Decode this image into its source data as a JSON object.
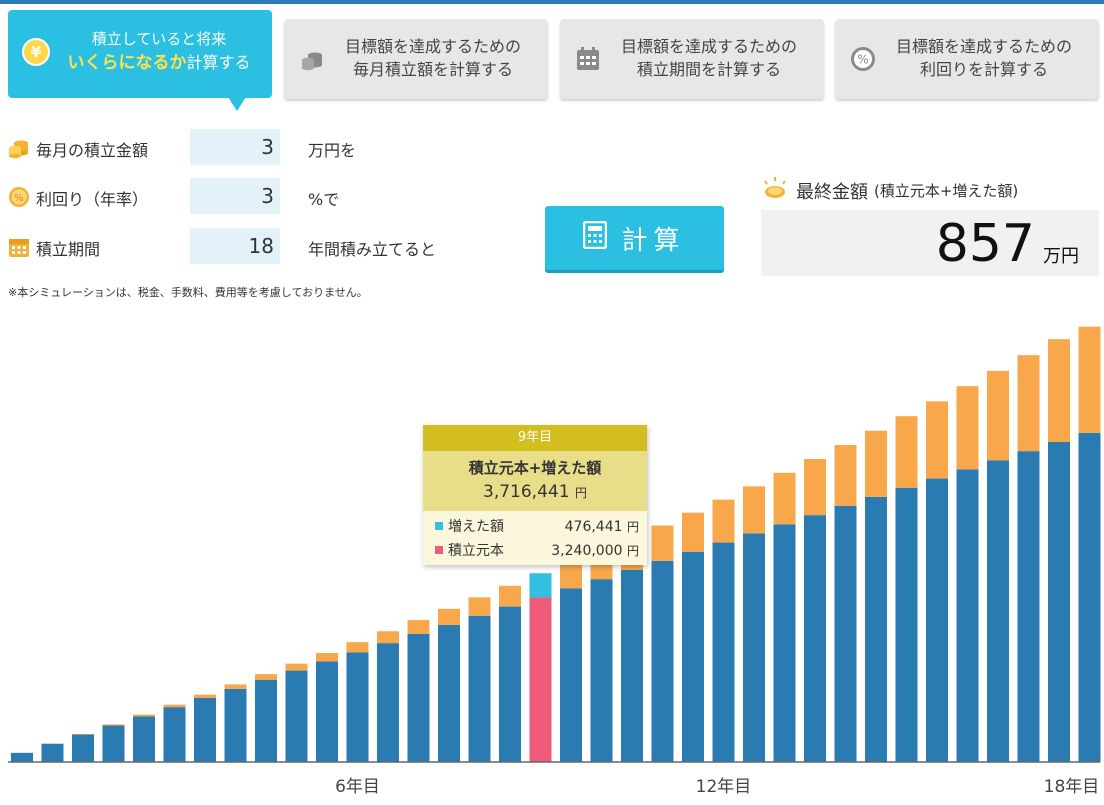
{
  "tabs": [
    {
      "line1": "積立していると将来",
      "highlight": "いくらになるか",
      "line2_suffix": "計算する",
      "icon": "yen-coin-icon",
      "active": true
    },
    {
      "line1": "目標額を達成するための",
      "line2": "毎月積立額を計算する",
      "icon": "coin-stack-icon",
      "active": false
    },
    {
      "line1": "目標額を達成するための",
      "line2": "積立期間を計算する",
      "icon": "calendar-icon",
      "active": false
    },
    {
      "line1": "目標額を達成するための",
      "line2": "利回りを計算する",
      "icon": "percent-icon",
      "active": false
    }
  ],
  "form": {
    "monthly": {
      "label": "毎月の積立金額",
      "value": "3",
      "unit": "万円を"
    },
    "rate": {
      "label": "利回り（年率）",
      "value": "3",
      "unit": "%で"
    },
    "period": {
      "label": "積立期間",
      "value": "18",
      "unit": "年間積み立てると"
    }
  },
  "note": "※本シミュレーションは、税金、手数料、費用等を考慮しておりません。",
  "calc_button": "計算",
  "result": {
    "title": "最終金額",
    "subtitle": "(積立元本+増えた額)",
    "value": "857",
    "unit": "万円"
  },
  "tooltip": {
    "header": "9年目",
    "title": "積立元本+増えた額",
    "total": "3,716,441",
    "yen": "円",
    "rows": [
      {
        "label": "増えた額",
        "value": "476,441",
        "color": "#33bfe2"
      },
      {
        "label": "積立元本",
        "value": "3,240,000",
        "color": "#ef5b7a"
      }
    ]
  },
  "colors": {
    "principal": "#2b7bb3",
    "gain": "#f8a84b",
    "highlight_principal": "#ef5b7a",
    "highlight_gain": "#33bfe2"
  },
  "chart_data": {
    "type": "bar",
    "stacked": true,
    "x_tick_labels": [
      "6年目",
      "12年目",
      "18年目"
    ],
    "x_tick_positions": [
      12,
      24,
      36
    ],
    "categories": [
      1,
      2,
      3,
      4,
      5,
      6,
      7,
      8,
      9,
      10,
      11,
      12,
      13,
      14,
      15,
      16,
      17,
      18,
      19,
      20,
      21,
      22,
      23,
      24,
      25,
      26,
      27,
      28,
      29,
      30,
      31,
      32,
      33,
      34,
      35,
      36
    ],
    "unit_x": "half-year",
    "highlight_index": 17,
    "series": [
      {
        "name": "積立元本",
        "values": [
          180000,
          360000,
          540000,
          720000,
          900000,
          1080000,
          1260000,
          1440000,
          1620000,
          1800000,
          1980000,
          2160000,
          2340000,
          2520000,
          2700000,
          2880000,
          3060000,
          3240000,
          3420000,
          3600000,
          3780000,
          3960000,
          4140000,
          4320000,
          4500000,
          4680000,
          4860000,
          5040000,
          5220000,
          5400000,
          5580000,
          5760000,
          5940000,
          6120000,
          6300000,
          6480000
        ]
      },
      {
        "name": "増えた額",
        "values": [
          1300,
          5300,
          12000,
          21400,
          33600,
          48500,
          66300,
          86900,
          110400,
          136900,
          166400,
          198900,
          234500,
          273300,
          315300,
          360600,
          409300,
          476441,
          515900,
          563600,
          627500,
          695600,
          768000,
          844900,
          926400,
          1012700,
          1104000,
          1200200,
          1301600,
          1408200,
          1520200,
          1637700,
          1760900,
          1889800,
          2024600,
          2090000
        ]
      }
    ],
    "ylim": [
      0,
      8800000
    ]
  }
}
